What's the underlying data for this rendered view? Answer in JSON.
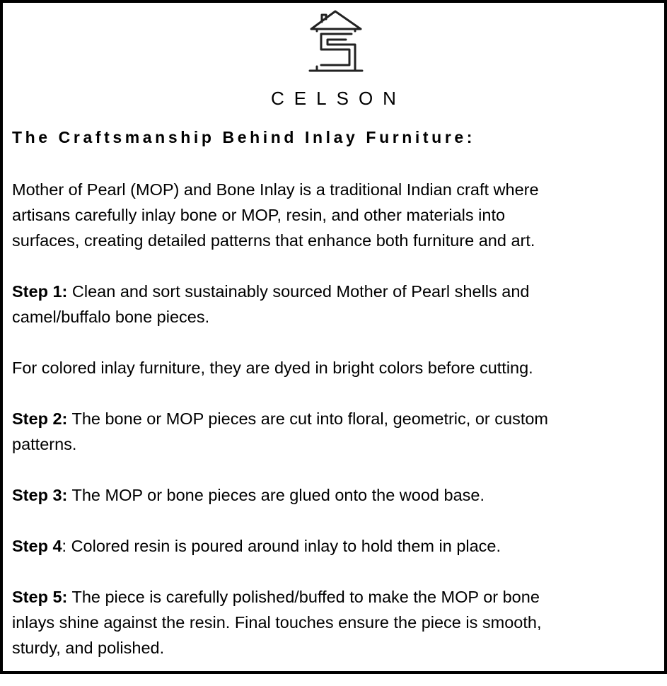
{
  "brand": {
    "name": "CELSON",
    "logo_icon": "house-with-c-s-monogram-icon"
  },
  "title": "The Craftsmanship Behind Inlay Furniture:",
  "intro": [
    "Mother of Pearl (MOP) and Bone Inlay is a traditional Indian craft where",
    "artisans carefully inlay bone or MOP, resin, and other materials into",
    "surfaces, creating detailed patterns that enhance both furniture and art."
  ],
  "step1": {
    "label": "Step 1:",
    "lines": [
      " Clean and sort sustainably sourced Mother of Pearl shells and",
      "camel/buffalo bone pieces."
    ]
  },
  "note": "For colored inlay furniture, they are dyed in bright colors before cutting.",
  "step2": {
    "label": "Step 2:",
    "lines": [
      " The bone or MOP pieces are cut into floral, geometric, or custom",
      "patterns."
    ]
  },
  "step3": {
    "label": "Step 3:",
    "lines": [
      " The MOP or bone pieces are glued onto the wood base."
    ]
  },
  "step4": {
    "label": "Step 4",
    "lines": [
      ": Colored resin is poured around inlay to hold them in place."
    ]
  },
  "step5": {
    "label": "Step 5:",
    "lines": [
      " The piece is carefully polished/buffed to make the MOP or bone",
      "inlays shine against the resin. Final touches ensure the piece is smooth,",
      "sturdy, and polished."
    ]
  }
}
